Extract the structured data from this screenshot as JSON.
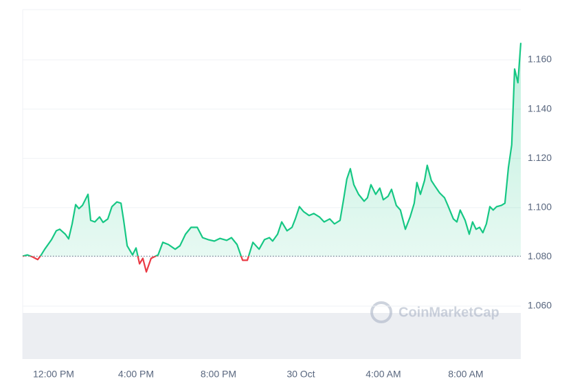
{
  "chart_data": {
    "type": "line",
    "watermark": "CoinMarketCap",
    "x": [
      10.5,
      10.73,
      10.97,
      11.23,
      11.4,
      11.57,
      11.9,
      12.13,
      12.3,
      12.57,
      12.73,
      12.9,
      13.07,
      13.23,
      13.4,
      13.67,
      13.8,
      14.0,
      14.23,
      14.4,
      14.63,
      14.83,
      15.07,
      15.27,
      15.4,
      15.57,
      15.83,
      16.0,
      16.17,
      16.33,
      16.5,
      16.73,
      17.07,
      17.3,
      17.57,
      17.9,
      18.13,
      18.4,
      18.67,
      18.97,
      19.23,
      19.5,
      19.8,
      20.07,
      20.4,
      20.63,
      20.9,
      21.17,
      21.4,
      21.67,
      21.97,
      22.23,
      22.47,
      22.63,
      22.87,
      23.07,
      23.33,
      23.57,
      23.73,
      23.93,
      24.13,
      24.4,
      24.63,
      24.9,
      25.13,
      25.4,
      25.63,
      25.9,
      26.07,
      26.23,
      26.4,
      26.57,
      26.8,
      27.07,
      27.23,
      27.4,
      27.63,
      27.83,
      28.0,
      28.23,
      28.4,
      28.63,
      28.83,
      29.07,
      29.3,
      29.5,
      29.63,
      29.8,
      30.0,
      30.13,
      30.33,
      30.5,
      30.73,
      30.97,
      31.13,
      31.4,
      31.57,
      31.73,
      31.97,
      32.17,
      32.33,
      32.5,
      32.67,
      32.83,
      33.0,
      33.17,
      33.33,
      33.5,
      33.73,
      33.9,
      34.07,
      34.23,
      34.37,
      34.53,
      34.67
    ],
    "values": [
      1.0803,
      1.0808,
      1.08,
      1.0789,
      1.0808,
      1.0831,
      1.087,
      1.0906,
      1.0912,
      1.0892,
      1.0873,
      1.0934,
      1.1012,
      1.0996,
      1.1009,
      1.1054,
      1.0948,
      1.0942,
      1.0962,
      1.094,
      1.0954,
      1.1004,
      1.1023,
      1.1018,
      1.0948,
      1.0845,
      1.0808,
      1.0836,
      1.0772,
      1.0794,
      1.0739,
      1.0794,
      1.0808,
      1.0859,
      1.085,
      1.0831,
      1.0845,
      1.0892,
      1.092,
      1.092,
      1.0878,
      1.087,
      1.0864,
      1.0875,
      1.0867,
      1.0878,
      1.085,
      1.0786,
      1.0786,
      1.0859,
      1.0831,
      1.087,
      1.0878,
      1.0864,
      1.0892,
      1.0942,
      1.0906,
      1.092,
      1.0954,
      1.1004,
      1.0984,
      1.0968,
      1.0976,
      1.0962,
      1.0942,
      1.0954,
      1.0934,
      1.0948,
      1.1032,
      1.1116,
      1.1158,
      1.1093,
      1.1054,
      1.1026,
      1.104,
      1.1093,
      1.1054,
      1.1079,
      1.1032,
      1.1046,
      1.1074,
      1.1009,
      1.099,
      1.0912,
      1.0962,
      1.1018,
      1.1102,
      1.1054,
      1.111,
      1.1172,
      1.111,
      1.1088,
      1.106,
      1.104,
      1.1009,
      1.0954,
      1.0942,
      1.099,
      1.0948,
      1.0892,
      1.0942,
      1.0912,
      1.092,
      1.0898,
      1.0934,
      1.1004,
      1.099,
      1.1004,
      1.1009,
      1.1018,
      1.1163,
      1.1255,
      1.1563,
      1.1507,
      1.1669
    ],
    "baseline": 1.0803,
    "up_color": "#16c784",
    "down_color": "#ea3943",
    "xlim": [
      10.5,
      34.67
    ],
    "ylim": [
      1.0385,
      1.1804
    ],
    "xticks": [
      {
        "value": 12,
        "label": "12:00 PM"
      },
      {
        "value": 16,
        "label": "4:00 PM"
      },
      {
        "value": 20,
        "label": "8:00 PM"
      },
      {
        "value": 24,
        "label": "30 Oct"
      },
      {
        "value": 28,
        "label": "4:00 AM"
      },
      {
        "value": 32,
        "label": "8:00 AM"
      }
    ],
    "yticks": [
      {
        "value": 1.06,
        "label": "1.060"
      },
      {
        "value": 1.08,
        "label": "1.080"
      },
      {
        "value": 1.1,
        "label": "1.100"
      },
      {
        "value": 1.12,
        "label": "1.120"
      },
      {
        "value": 1.14,
        "label": "1.140"
      },
      {
        "value": 1.16,
        "label": "1.160"
      }
    ],
    "grid": true
  }
}
